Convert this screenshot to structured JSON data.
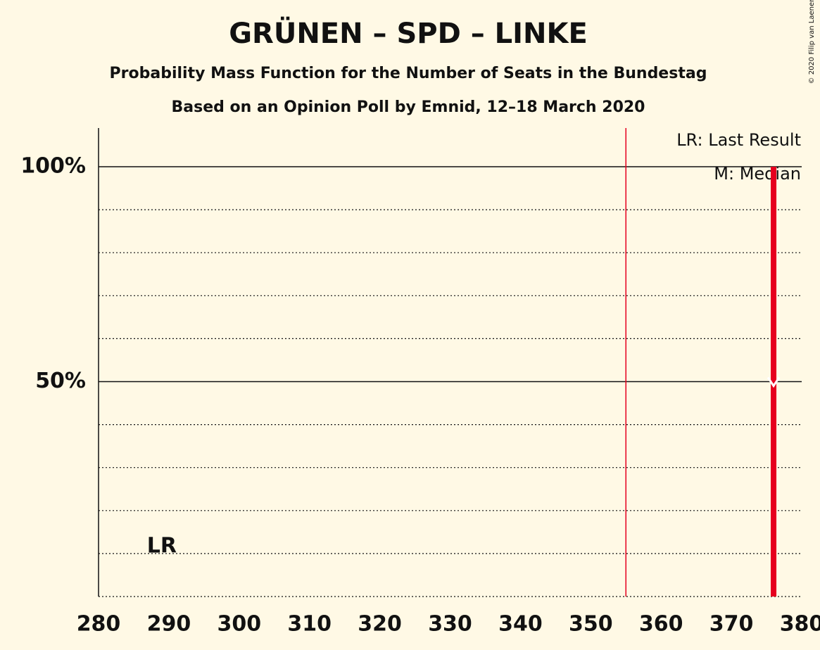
{
  "chart_data": {
    "type": "bar",
    "title": "GRÜNEN – SPD – LINKE",
    "subtitle": [
      "Probability Mass Function for the Number of Seats in the Bundestag",
      "Based on an Opinion Poll by Emnid, 12–18 March 2020"
    ],
    "copyright": "© 2020 Filip van Laenen",
    "x": [
      376
    ],
    "values": [
      100
    ],
    "color": "#e6001e",
    "xlim": [
      280,
      380
    ],
    "xticks": [
      280,
      290,
      300,
      310,
      320,
      330,
      340,
      350,
      360,
      370,
      380
    ],
    "ylim": [
      0,
      109
    ],
    "yticks": [
      {
        "value": 50,
        "label": "50%"
      },
      {
        "value": 100,
        "label": "100%"
      }
    ],
    "minor_grid": [
      0,
      10,
      20,
      30,
      40,
      60,
      70,
      80,
      90
    ],
    "majority": 355,
    "median": {
      "x": 376,
      "y": 50
    },
    "last_result": {
      "x": 289,
      "label": "LR"
    },
    "legend": [
      "LR: Last Result",
      "M: Median"
    ]
  }
}
